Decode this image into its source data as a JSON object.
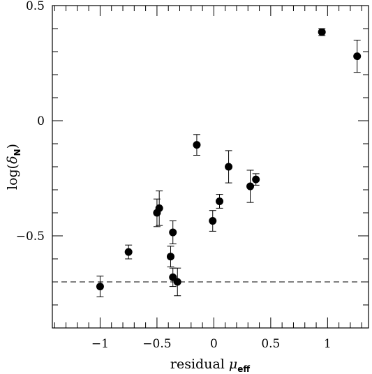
{
  "chart_data": {
    "type": "scatter",
    "xlabel": {
      "main": "residual ",
      "symbol": "μ",
      "subscript": "eff"
    },
    "ylabel": {
      "main": "log(",
      "symbol": "δ",
      "subscript": "N",
      "close": ")"
    },
    "xlim": [
      -1.42,
      1.36
    ],
    "ylim": [
      -0.9,
      0.5
    ],
    "xticks": [
      {
        "value": -1,
        "label": "−1"
      },
      {
        "value": -0.5,
        "label": "−0.5"
      },
      {
        "value": 0,
        "label": "0"
      },
      {
        "value": 0.5,
        "label": "0.5"
      },
      {
        "value": 1,
        "label": "1"
      }
    ],
    "yticks": [
      {
        "value": 0.5,
        "label": "0.5"
      },
      {
        "value": 0,
        "label": "0"
      },
      {
        "value": -0.5,
        "label": "−0.5"
      }
    ],
    "x_minor_step": 0.1,
    "y_minor_step": 0.1,
    "reference_line": {
      "y": -0.7,
      "style": "dashed"
    },
    "points": [
      {
        "x": -1.0,
        "y": -0.72,
        "err": 0.045
      },
      {
        "x": -0.75,
        "y": -0.57,
        "err": 0.03
      },
      {
        "x": -0.5,
        "y": -0.4,
        "err": 0.06
      },
      {
        "x": -0.48,
        "y": -0.38,
        "err": 0.075
      },
      {
        "x": -0.38,
        "y": -0.59,
        "err": 0.045
      },
      {
        "x": -0.36,
        "y": -0.485,
        "err": 0.05
      },
      {
        "x": -0.36,
        "y": -0.68,
        "err": 0.04
      },
      {
        "x": -0.32,
        "y": -0.7,
        "err": 0.06
      },
      {
        "x": -0.15,
        "y": -0.105,
        "err": 0.045
      },
      {
        "x": -0.01,
        "y": -0.435,
        "err": 0.045
      },
      {
        "x": 0.05,
        "y": -0.35,
        "err": 0.03
      },
      {
        "x": 0.13,
        "y": -0.2,
        "err": 0.07
      },
      {
        "x": 0.32,
        "y": -0.285,
        "err": 0.07
      },
      {
        "x": 0.37,
        "y": -0.255,
        "err": 0.025
      },
      {
        "x": 0.95,
        "y": 0.385,
        "err": 0.015
      },
      {
        "x": 1.26,
        "y": 0.28,
        "err": 0.07
      }
    ]
  }
}
